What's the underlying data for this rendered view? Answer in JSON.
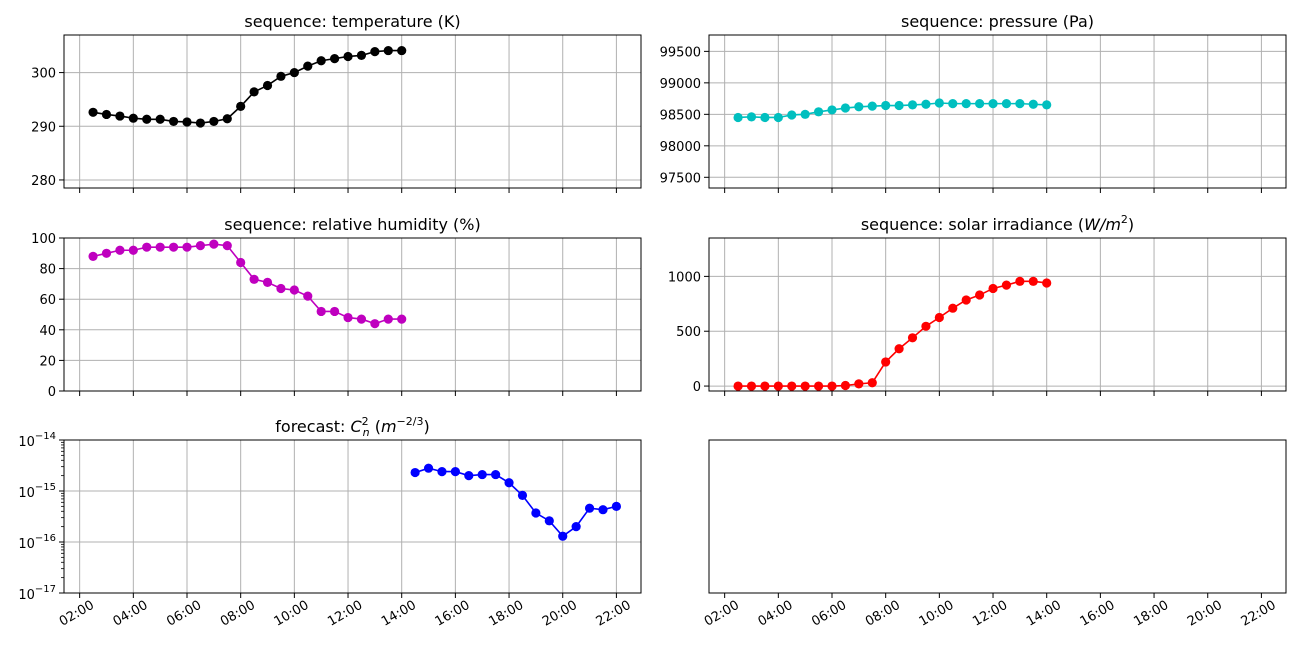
{
  "chart_data": [
    {
      "type": "line",
      "panel": "top-left",
      "title": "sequence: temperature (K)",
      "color": "#000000",
      "x_ticks": [
        "02:00",
        "04:00",
        "06:00",
        "08:00",
        "10:00",
        "12:00",
        "14:00",
        "16:00",
        "18:00",
        "20:00",
        "22:00"
      ],
      "x_tick_labels_visible": false,
      "ylim": [
        278.5,
        307
      ],
      "y_ticks": [
        280,
        290,
        300
      ],
      "y_tick_labels": [
        "280",
        "290",
        "300"
      ],
      "grid": true,
      "points": [
        {
          "x": "02:30",
          "y": 292.6
        },
        {
          "x": "03:00",
          "y": 292.2
        },
        {
          "x": "03:30",
          "y": 291.9
        },
        {
          "x": "04:00",
          "y": 291.5
        },
        {
          "x": "04:30",
          "y": 291.3
        },
        {
          "x": "05:00",
          "y": 291.3
        },
        {
          "x": "05:30",
          "y": 290.9
        },
        {
          "x": "06:00",
          "y": 290.8
        },
        {
          "x": "06:30",
          "y": 290.6
        },
        {
          "x": "07:00",
          "y": 290.9
        },
        {
          "x": "07:30",
          "y": 291.4
        },
        {
          "x": "08:00",
          "y": 293.7
        },
        {
          "x": "08:30",
          "y": 296.4
        },
        {
          "x": "09:00",
          "y": 297.6
        },
        {
          "x": "09:30",
          "y": 299.3
        },
        {
          "x": "10:00",
          "y": 300.0
        },
        {
          "x": "10:30",
          "y": 301.2
        },
        {
          "x": "11:00",
          "y": 302.2
        },
        {
          "x": "11:30",
          "y": 302.6
        },
        {
          "x": "12:00",
          "y": 303.0
        },
        {
          "x": "12:30",
          "y": 303.2
        },
        {
          "x": "13:00",
          "y": 303.9
        },
        {
          "x": "13:30",
          "y": 304.1
        },
        {
          "x": "14:00",
          "y": 304.1
        }
      ]
    },
    {
      "type": "line",
      "panel": "top-right",
      "title": "sequence: pressure (Pa)",
      "color": "#00bfbf",
      "x_ticks": [
        "02:00",
        "04:00",
        "06:00",
        "08:00",
        "10:00",
        "12:00",
        "14:00",
        "16:00",
        "18:00",
        "20:00",
        "22:00"
      ],
      "x_tick_labels_visible": false,
      "ylim": [
        97330,
        99760
      ],
      "y_ticks": [
        97500,
        98000,
        98500,
        99000,
        99500
      ],
      "y_tick_labels": [
        "97500",
        "98000",
        "98500",
        "99000",
        "99500"
      ],
      "grid": true,
      "points": [
        {
          "x": "02:30",
          "y": 98450
        },
        {
          "x": "03:00",
          "y": 98460
        },
        {
          "x": "03:30",
          "y": 98450
        },
        {
          "x": "04:00",
          "y": 98450
        },
        {
          "x": "04:30",
          "y": 98490
        },
        {
          "x": "05:00",
          "y": 98500
        },
        {
          "x": "05:30",
          "y": 98540
        },
        {
          "x": "06:00",
          "y": 98570
        },
        {
          "x": "06:30",
          "y": 98600
        },
        {
          "x": "07:00",
          "y": 98620
        },
        {
          "x": "07:30",
          "y": 98630
        },
        {
          "x": "08:00",
          "y": 98640
        },
        {
          "x": "08:30",
          "y": 98640
        },
        {
          "x": "09:00",
          "y": 98650
        },
        {
          "x": "09:30",
          "y": 98660
        },
        {
          "x": "10:00",
          "y": 98680
        },
        {
          "x": "10:30",
          "y": 98670
        },
        {
          "x": "11:00",
          "y": 98670
        },
        {
          "x": "11:30",
          "y": 98670
        },
        {
          "x": "12:00",
          "y": 98670
        },
        {
          "x": "12:30",
          "y": 98670
        },
        {
          "x": "13:00",
          "y": 98670
        },
        {
          "x": "13:30",
          "y": 98660
        },
        {
          "x": "14:00",
          "y": 98650
        }
      ]
    },
    {
      "type": "line",
      "panel": "middle-left",
      "title": "sequence: relative humidity (%)",
      "color": "#bf00bf",
      "x_ticks": [
        "02:00",
        "04:00",
        "06:00",
        "08:00",
        "10:00",
        "12:00",
        "14:00",
        "16:00",
        "18:00",
        "20:00",
        "22:00"
      ],
      "x_tick_labels_visible": false,
      "ylim": [
        0,
        100
      ],
      "y_ticks": [
        0,
        20,
        40,
        60,
        80,
        100
      ],
      "y_tick_labels": [
        "0",
        "20",
        "40",
        "60",
        "80",
        "100"
      ],
      "grid": true,
      "points": [
        {
          "x": "02:30",
          "y": 88
        },
        {
          "x": "03:00",
          "y": 90
        },
        {
          "x": "03:30",
          "y": 92
        },
        {
          "x": "04:00",
          "y": 92
        },
        {
          "x": "04:30",
          "y": 94
        },
        {
          "x": "05:00",
          "y": 94
        },
        {
          "x": "05:30",
          "y": 94
        },
        {
          "x": "06:00",
          "y": 94
        },
        {
          "x": "06:30",
          "y": 95
        },
        {
          "x": "07:00",
          "y": 96
        },
        {
          "x": "07:30",
          "y": 95
        },
        {
          "x": "08:00",
          "y": 84
        },
        {
          "x": "08:30",
          "y": 73
        },
        {
          "x": "09:00",
          "y": 71
        },
        {
          "x": "09:30",
          "y": 67
        },
        {
          "x": "10:00",
          "y": 66
        },
        {
          "x": "10:30",
          "y": 62
        },
        {
          "x": "11:00",
          "y": 52
        },
        {
          "x": "11:30",
          "y": 52
        },
        {
          "x": "12:00",
          "y": 48
        },
        {
          "x": "12:30",
          "y": 47
        },
        {
          "x": "13:00",
          "y": 44
        },
        {
          "x": "13:30",
          "y": 47
        },
        {
          "x": "14:00",
          "y": 47
        }
      ]
    },
    {
      "type": "line",
      "panel": "middle-right",
      "title_parts": {
        "prefix": "sequence: solar irradiance (",
        "unit": "W/m",
        "sup": "2",
        "suffix": ")"
      },
      "color": "#ff0000",
      "x_ticks": [
        "02:00",
        "04:00",
        "06:00",
        "08:00",
        "10:00",
        "12:00",
        "14:00",
        "16:00",
        "18:00",
        "20:00",
        "22:00"
      ],
      "x_tick_labels_visible": false,
      "ylim": [
        -45,
        1350
      ],
      "y_ticks": [
        0,
        500,
        1000
      ],
      "y_tick_labels": [
        "0",
        "500",
        "1000"
      ],
      "grid": true,
      "points": [
        {
          "x": "02:30",
          "y": 0
        },
        {
          "x": "03:00",
          "y": 0
        },
        {
          "x": "03:30",
          "y": 0
        },
        {
          "x": "04:00",
          "y": 0
        },
        {
          "x": "04:30",
          "y": 0
        },
        {
          "x": "05:00",
          "y": 0
        },
        {
          "x": "05:30",
          "y": 0
        },
        {
          "x": "06:00",
          "y": 0
        },
        {
          "x": "06:30",
          "y": 5
        },
        {
          "x": "07:00",
          "y": 20
        },
        {
          "x": "07:30",
          "y": 30
        },
        {
          "x": "08:00",
          "y": 220
        },
        {
          "x": "08:30",
          "y": 340
        },
        {
          "x": "09:00",
          "y": 440
        },
        {
          "x": "09:30",
          "y": 545
        },
        {
          "x": "10:00",
          "y": 625
        },
        {
          "x": "10:30",
          "y": 710
        },
        {
          "x": "11:00",
          "y": 785
        },
        {
          "x": "11:30",
          "y": 830
        },
        {
          "x": "12:00",
          "y": 890
        },
        {
          "x": "12:30",
          "y": 920
        },
        {
          "x": "13:00",
          "y": 955
        },
        {
          "x": "13:30",
          "y": 955
        },
        {
          "x": "14:00",
          "y": 940
        }
      ]
    },
    {
      "type": "line",
      "panel": "bottom-left",
      "title_parts": {
        "prefix": "forecast: ",
        "symbol": "C",
        "sup": "2",
        "sub": "n",
        "unit": "m",
        "unit_sup": "−2/3"
      },
      "color": "#0000ff",
      "yscale": "log",
      "x_ticks": [
        "02:00",
        "04:00",
        "06:00",
        "08:00",
        "10:00",
        "12:00",
        "14:00",
        "16:00",
        "18:00",
        "20:00",
        "22:00"
      ],
      "x_tick_labels_visible": true,
      "ylim": [
        1e-17,
        1e-14
      ],
      "y_ticks": [
        1e-17,
        1e-16,
        1e-15,
        1e-14
      ],
      "y_tick_labels": [
        {
          "base": "10",
          "exp": "−17"
        },
        {
          "base": "10",
          "exp": "−16"
        },
        {
          "base": "10",
          "exp": "−15"
        },
        {
          "base": "10",
          "exp": "−14"
        }
      ],
      "grid": true,
      "points": [
        {
          "x": "14:30",
          "y": 2.3e-15
        },
        {
          "x": "15:00",
          "y": 2.8e-15
        },
        {
          "x": "15:30",
          "y": 2.4e-15
        },
        {
          "x": "16:00",
          "y": 2.4e-15
        },
        {
          "x": "16:30",
          "y": 2e-15
        },
        {
          "x": "17:00",
          "y": 2.1e-15
        },
        {
          "x": "17:30",
          "y": 2.1e-15
        },
        {
          "x": "18:00",
          "y": 1.45e-15
        },
        {
          "x": "18:30",
          "y": 8.2e-16
        },
        {
          "x": "19:00",
          "y": 3.7e-16
        },
        {
          "x": "19:30",
          "y": 2.6e-16
        },
        {
          "x": "20:00",
          "y": 1.3e-16
        },
        {
          "x": "20:30",
          "y": 2e-16
        },
        {
          "x": "21:00",
          "y": 4.6e-16
        },
        {
          "x": "21:30",
          "y": 4.3e-16
        },
        {
          "x": "22:00",
          "y": 5e-16
        }
      ]
    },
    {
      "type": "line",
      "panel": "bottom-right",
      "title": "",
      "x_ticks": [
        "02:00",
        "04:00",
        "06:00",
        "08:00",
        "10:00",
        "12:00",
        "14:00",
        "16:00",
        "18:00",
        "20:00",
        "22:00"
      ],
      "x_tick_labels_visible": true,
      "y_ticks": [],
      "grid": false,
      "points": []
    }
  ]
}
